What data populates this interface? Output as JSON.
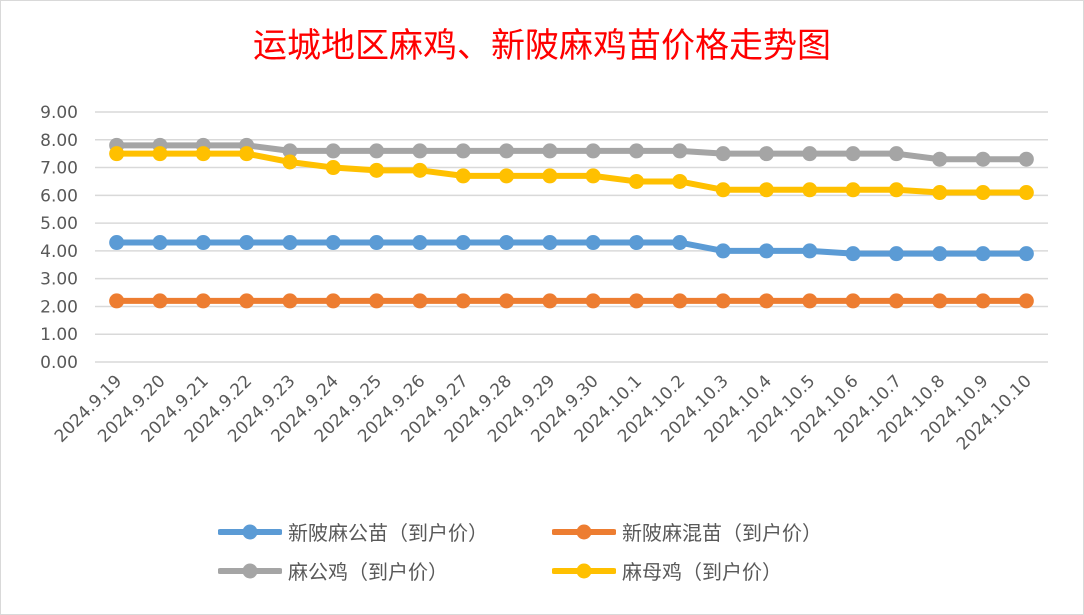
{
  "chart_data": {
    "type": "line",
    "title": "运城地区麻鸡、新陂麻鸡苗价格走势图",
    "xlabel": "",
    "ylabel": "",
    "ylim": [
      0,
      9
    ],
    "yticks": [
      "0.00",
      "1.00",
      "2.00",
      "3.00",
      "4.00",
      "5.00",
      "6.00",
      "7.00",
      "8.00",
      "9.00"
    ],
    "grid": true,
    "legend_position": "bottom",
    "categories": [
      "2024.9.19",
      "2024.9.20",
      "2024.9.21",
      "2024.9.22",
      "2024.9.23",
      "2024.9.24",
      "2024.9.25",
      "2024.9.26",
      "2024.9.27",
      "2024.9.28",
      "2024.9.29",
      "2024.9.30",
      "2024.10.1",
      "2024.10.2",
      "2024.10.3",
      "2024.10.4",
      "2024.10.5",
      "2024.10.6",
      "2024.10.7",
      "2024.10.8",
      "2024.10.9",
      "2024.10.10"
    ],
    "series": [
      {
        "name": "新陂麻公苗（到户价）",
        "color": "#5b9bd5",
        "values": [
          4.3,
          4.3,
          4.3,
          4.3,
          4.3,
          4.3,
          4.3,
          4.3,
          4.3,
          4.3,
          4.3,
          4.3,
          4.3,
          4.3,
          4.0,
          4.0,
          4.0,
          3.9,
          3.9,
          3.9,
          3.9,
          3.9
        ]
      },
      {
        "name": "新陂麻混苗（到户价）",
        "color": "#ed7d31",
        "values": [
          2.2,
          2.2,
          2.2,
          2.2,
          2.2,
          2.2,
          2.2,
          2.2,
          2.2,
          2.2,
          2.2,
          2.2,
          2.2,
          2.2,
          2.2,
          2.2,
          2.2,
          2.2,
          2.2,
          2.2,
          2.2,
          2.2
        ]
      },
      {
        "name": "麻公鸡（到户价）",
        "color": "#a5a5a5",
        "values": [
          7.8,
          7.8,
          7.8,
          7.8,
          7.6,
          7.6,
          7.6,
          7.6,
          7.6,
          7.6,
          7.6,
          7.6,
          7.6,
          7.6,
          7.5,
          7.5,
          7.5,
          7.5,
          7.5,
          7.3,
          7.3,
          7.3
        ]
      },
      {
        "name": "麻母鸡（到户价）",
        "color": "#ffc000",
        "values": [
          7.5,
          7.5,
          7.5,
          7.5,
          7.2,
          7.0,
          6.9,
          6.9,
          6.7,
          6.7,
          6.7,
          6.7,
          6.5,
          6.5,
          6.2,
          6.2,
          6.2,
          6.2,
          6.2,
          6.1,
          6.1,
          6.1
        ]
      }
    ]
  }
}
